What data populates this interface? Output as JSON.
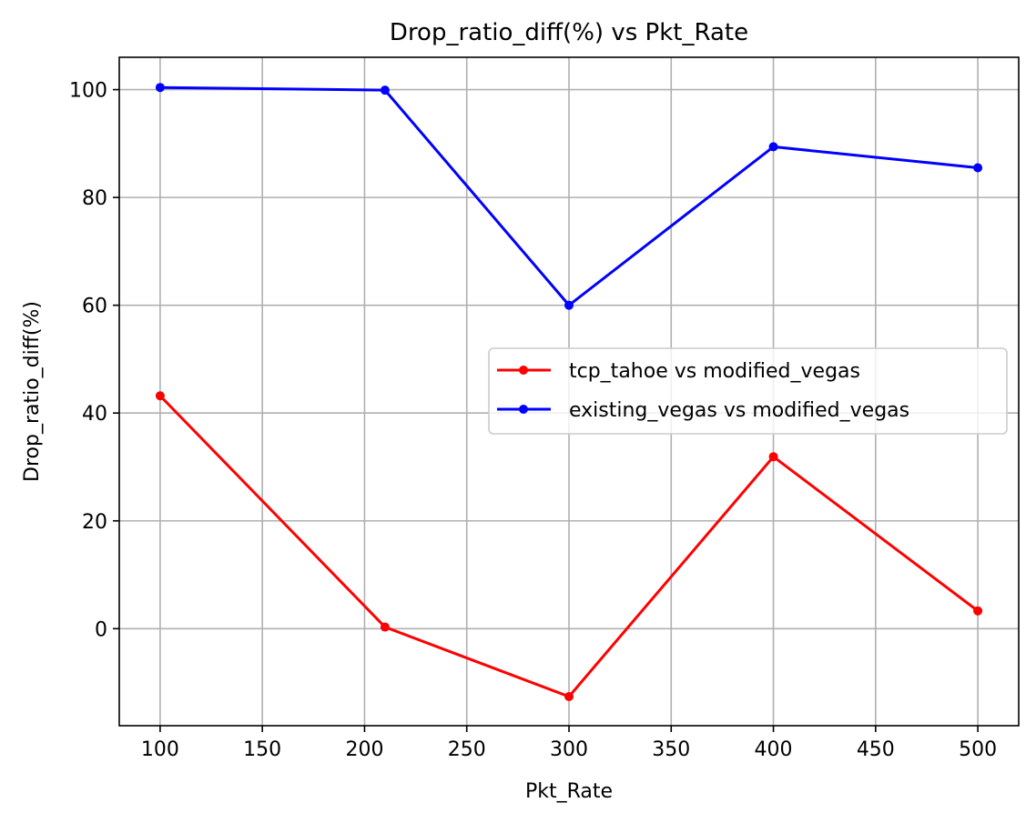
{
  "chart_data": {
    "type": "line",
    "title": "Drop_ratio_diff(%) vs Pkt_Rate",
    "xlabel": "Pkt_Rate",
    "ylabel": "Drop_ratio_diff(%)",
    "xlim": [
      80,
      520
    ],
    "ylim": [
      -18,
      106
    ],
    "xticks": [
      100,
      150,
      200,
      250,
      300,
      350,
      400,
      450,
      500
    ],
    "yticks": [
      0,
      20,
      40,
      60,
      80,
      100
    ],
    "grid": true,
    "legend_position": "center-right",
    "series": [
      {
        "name": "tcp_tahoe vs modified_vegas",
        "color": "#ff0000",
        "x": [
          100,
          210,
          300,
          400,
          500
        ],
        "y": [
          43.2,
          0.3,
          -12.6,
          31.9,
          3.3
        ]
      },
      {
        "name": "existing_vegas vs modified_vegas",
        "color": "#0000ff",
        "x": [
          100,
          210,
          300,
          400,
          500
        ],
        "y": [
          100.4,
          99.9,
          60.0,
          89.4,
          85.5
        ]
      }
    ]
  }
}
